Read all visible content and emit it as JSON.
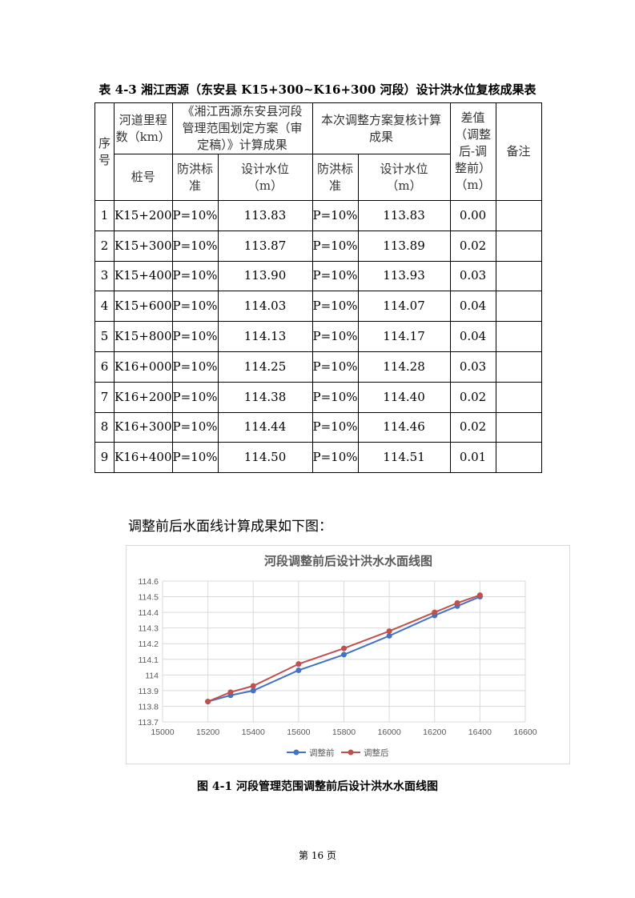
{
  "table": {
    "caption": "表 4-3  湘江西源（东安县 K15+300~K16+300 河段）设计洪水位复核成果表",
    "headers": {
      "index": "序号",
      "mileage": "河道里程数（km）",
      "original": "《湘江西源东安县河段管理范围划定方案（审定稿）》计算成果",
      "revised": "本次调整方案复核计算成果",
      "diff": "差值（调整后-调整前）（m）",
      "remark": "备注",
      "station": "桩号",
      "standard": "防洪标准",
      "level": "设计水位（m）"
    },
    "rows": [
      [
        "1",
        "K15+200",
        "P=10%",
        "113.83",
        "P=10%",
        "113.83",
        "0.00",
        ""
      ],
      [
        "2",
        "K15+300",
        "P=10%",
        "113.87",
        "P=10%",
        "113.89",
        "0.02",
        ""
      ],
      [
        "3",
        "K15+400",
        "P=10%",
        "113.90",
        "P=10%",
        "113.93",
        "0.03",
        ""
      ],
      [
        "4",
        "K15+600",
        "P=10%",
        "114.03",
        "P=10%",
        "114.07",
        "0.04",
        ""
      ],
      [
        "5",
        "K15+800",
        "P=10%",
        "114.13",
        "P=10%",
        "114.17",
        "0.04",
        ""
      ],
      [
        "6",
        "K16+000",
        "P=10%",
        "114.25",
        "P=10%",
        "114.28",
        "0.03",
        ""
      ],
      [
        "7",
        "K16+200",
        "P=10%",
        "114.38",
        "P=10%",
        "114.40",
        "0.02",
        ""
      ],
      [
        "8",
        "K16+300",
        "P=10%",
        "114.44",
        "P=10%",
        "114.46",
        "0.02",
        ""
      ],
      [
        "9",
        "K16+400",
        "P=10%",
        "114.50",
        "P=10%",
        "114.51",
        "0.01",
        ""
      ]
    ]
  },
  "paragraph": "调整前后水面线计算成果如下图：",
  "figure_caption": "图 4-1  河段管理范围调整前后设计洪水水面线图",
  "page_number": "第 16 页",
  "chart_data": {
    "type": "line",
    "title": "河段调整前后设计洪水水面线图",
    "x": [
      15200,
      15300,
      15400,
      15600,
      15800,
      16000,
      16200,
      16300,
      16400
    ],
    "series": [
      {
        "name": "调整前",
        "color": "#4472c4",
        "values": [
          113.83,
          113.87,
          113.9,
          114.03,
          114.13,
          114.25,
          114.38,
          114.44,
          114.5
        ]
      },
      {
        "name": "调整后",
        "color": "#c0504d",
        "values": [
          113.83,
          113.89,
          113.93,
          114.07,
          114.17,
          114.28,
          114.4,
          114.46,
          114.51
        ]
      }
    ],
    "xlim": [
      15000,
      16600
    ],
    "xticks": [
      15000,
      15200,
      15400,
      15600,
      15800,
      16000,
      16200,
      16400,
      16600
    ],
    "ylim": [
      113.7,
      114.6
    ],
    "yticks": [
      "113.7",
      "113.8",
      "113.9",
      "114",
      "114.1",
      "114.2",
      "114.3",
      "114.4",
      "114.5",
      "114.6"
    ],
    "grid": true,
    "legend": "bottom"
  }
}
